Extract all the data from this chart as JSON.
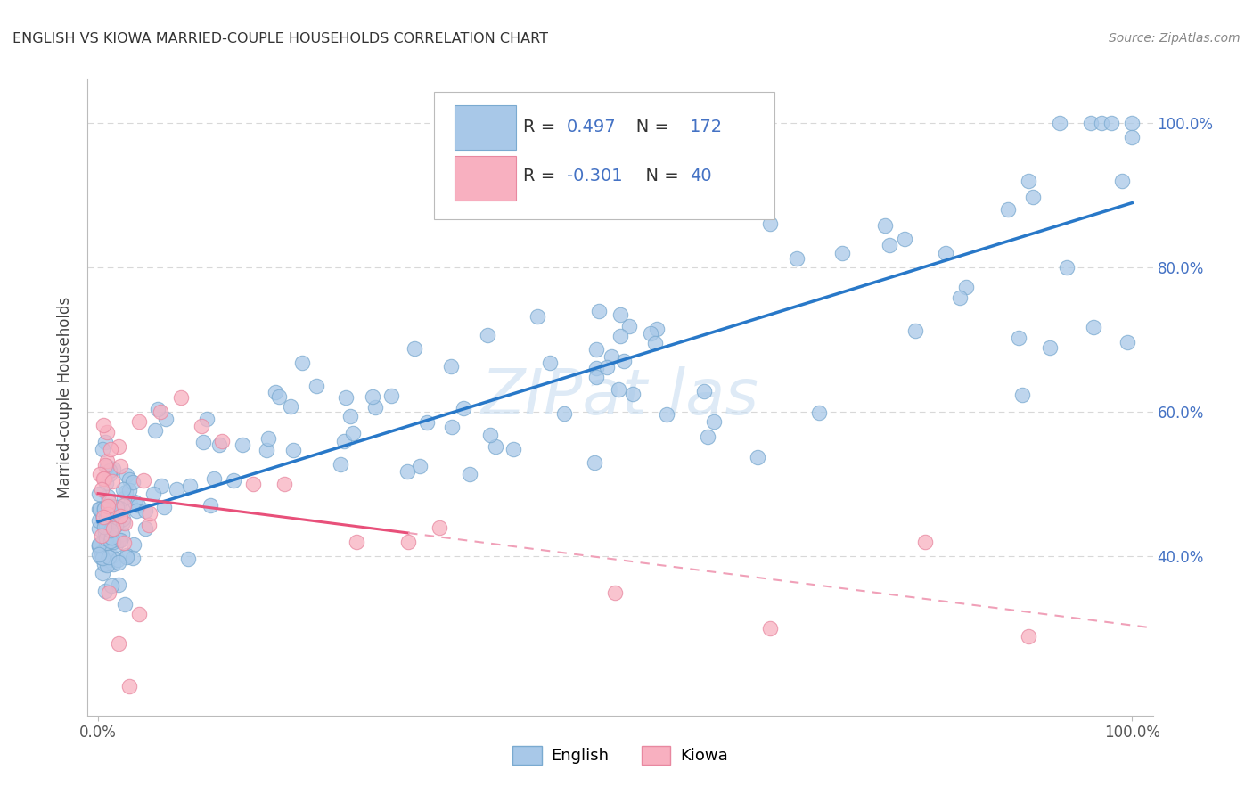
{
  "title": "ENGLISH VS KIOWA MARRIED-COUPLE HOUSEHOLDS CORRELATION CHART",
  "source": "Source: ZipAtlas.com",
  "ylabel": "Married-couple Households",
  "legend_english_R": "0.497",
  "legend_english_N": "172",
  "legend_kiowa_R": "-0.301",
  "legend_kiowa_N": "40",
  "english_scatter_color": "#a8c8e8",
  "english_scatter_edge": "#7aaad0",
  "english_line_color": "#2878c8",
  "kiowa_scatter_color": "#f8b0c0",
  "kiowa_scatter_edge": "#e888a0",
  "kiowa_line_color": "#e8507a",
  "kiowa_line_solid_color": "#e8507a",
  "kiowa_line_dash_color": "#f0a0b8",
  "right_axis_color": "#4472c4",
  "watermark_text": "ZIPat las",
  "watermark_color": "#c8ddf0",
  "grid_color": "#d8d8d8",
  "text_color": "#333333",
  "legend_value_color": "#4472c4",
  "yticks": [
    0.4,
    0.6,
    0.8,
    1.0
  ],
  "ytick_labels": [
    "40.0%",
    "60.0%",
    "80.0%",
    "100.0%"
  ],
  "xlim": [
    -0.01,
    1.02
  ],
  "ylim": [
    0.18,
    1.06
  ]
}
